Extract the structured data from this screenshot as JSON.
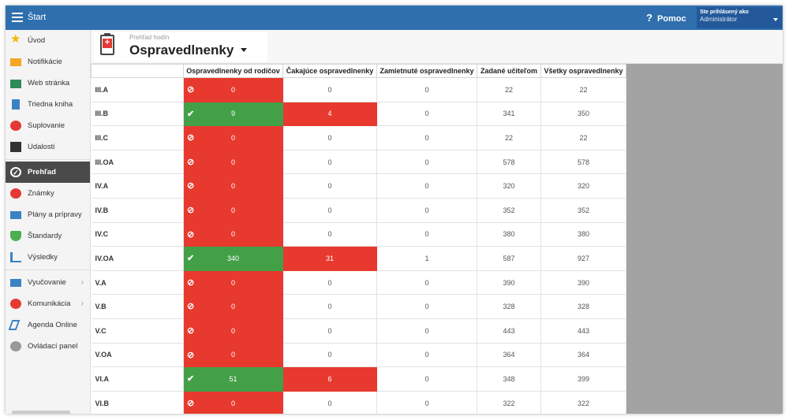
{
  "topbar": {
    "menu_icon": "hamburger-icon",
    "title": "Štart",
    "help_label": "Pomoc",
    "help_mark": "?",
    "user_line1": "Ste prihlásený ako",
    "user_line2": "Administrátor"
  },
  "sidebar": {
    "items": [
      {
        "label": "Úvod",
        "icon": "star-icon"
      },
      {
        "label": "Notifikácie",
        "icon": "envelope-icon"
      },
      {
        "label": "Web stránka",
        "icon": "home-icon"
      },
      {
        "label": "Triedna kniha",
        "icon": "book-icon"
      },
      {
        "label": "Suplovanie",
        "icon": "user-icon"
      },
      {
        "label": "Udalosti",
        "icon": "calendar-icon"
      },
      {
        "label": "Prehľad",
        "icon": "check-circle-icon",
        "active": true
      },
      {
        "label": "Známky",
        "icon": "grades-icon"
      },
      {
        "label": "Plány a prípravy",
        "icon": "briefcase-icon"
      },
      {
        "label": "Štandardy",
        "icon": "shield-icon"
      },
      {
        "label": "Výsledky",
        "icon": "bar-chart-icon"
      },
      {
        "label": "Vyučovanie",
        "icon": "book-open-icon",
        "chevron": "›"
      },
      {
        "label": "Komunikácia",
        "icon": "chat-icon",
        "chevron": "›"
      },
      {
        "label": "Agenda Online",
        "icon": "pen-icon"
      },
      {
        "label": "Ovládací panel",
        "icon": "gear-icon"
      }
    ]
  },
  "header": {
    "subtitle": "Prehľad hodín",
    "title": "Ospravedlnenky"
  },
  "table": {
    "columns": [
      "Ospravedlnenky od rodičov",
      "Čakajúce ospravedlnenky",
      "Zamietnuté ospravedlnenky",
      "Zadané učiteľom",
      "Všetky ospravedlnenky"
    ],
    "rows": [
      {
        "cls": "III.A",
        "parents": "0",
        "status": "no",
        "pending": "0",
        "rejected": "0",
        "teacher": "22",
        "all": "22"
      },
      {
        "cls": "III.B",
        "parents": "9",
        "status": "ok",
        "pending": "4",
        "rejected": "0",
        "teacher": "341",
        "all": "350"
      },
      {
        "cls": "III.C",
        "parents": "0",
        "status": "no",
        "pending": "0",
        "rejected": "0",
        "teacher": "22",
        "all": "22"
      },
      {
        "cls": "III.OA",
        "parents": "0",
        "status": "no",
        "pending": "0",
        "rejected": "0",
        "teacher": "578",
        "all": "578"
      },
      {
        "cls": "IV.A",
        "parents": "0",
        "status": "no",
        "pending": "0",
        "rejected": "0",
        "teacher": "320",
        "all": "320"
      },
      {
        "cls": "IV.B",
        "parents": "0",
        "status": "no",
        "pending": "0",
        "rejected": "0",
        "teacher": "352",
        "all": "352"
      },
      {
        "cls": "IV.C",
        "parents": "0",
        "status": "no",
        "pending": "0",
        "rejected": "0",
        "teacher": "380",
        "all": "380"
      },
      {
        "cls": "IV.OA",
        "parents": "340",
        "status": "ok",
        "pending": "31",
        "rejected": "1",
        "teacher": "587",
        "all": "927"
      },
      {
        "cls": "V.A",
        "parents": "0",
        "status": "no",
        "pending": "0",
        "rejected": "0",
        "teacher": "390",
        "all": "390"
      },
      {
        "cls": "V.B",
        "parents": "0",
        "status": "no",
        "pending": "0",
        "rejected": "0",
        "teacher": "328",
        "all": "328"
      },
      {
        "cls": "V.C",
        "parents": "0",
        "status": "no",
        "pending": "0",
        "rejected": "0",
        "teacher": "443",
        "all": "443"
      },
      {
        "cls": "V.OA",
        "parents": "0",
        "status": "no",
        "pending": "0",
        "rejected": "0",
        "teacher": "364",
        "all": "364"
      },
      {
        "cls": "VI.A",
        "parents": "51",
        "status": "ok",
        "pending": "6",
        "rejected": "0",
        "teacher": "348",
        "all": "399"
      },
      {
        "cls": "VI.B",
        "parents": "0",
        "status": "no",
        "pending": "0",
        "rejected": "0",
        "teacher": "322",
        "all": "322"
      }
    ]
  },
  "colors": {
    "topbar": "#2f6fae",
    "red": "#e8392e",
    "green": "#43a047",
    "active_nav": "#4a4a4a",
    "backdrop": "#a3a3a3"
  }
}
